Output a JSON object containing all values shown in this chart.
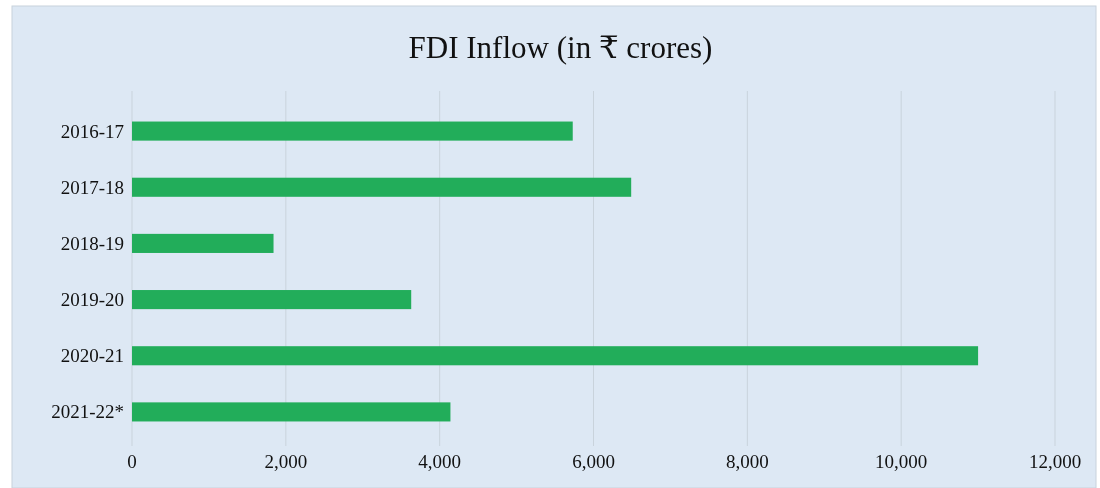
{
  "chart_data": {
    "type": "bar",
    "title": "FDI Inflow (in ₹ crores)",
    "orientation": "horizontal",
    "categories": [
      "2016-17",
      "2017-18",
      "2018-19",
      "2019-20",
      "2020-21",
      "2021-22*"
    ],
    "values": [
      5730,
      6490,
      1840,
      3630,
      11000,
      4140
    ],
    "color": "#22ad5a",
    "xlim": [
      0,
      12000
    ],
    "xticks": [
      {
        "value": 0,
        "label": "0"
      },
      {
        "value": 2000,
        "label": "2,000"
      },
      {
        "value": 4000,
        "label": "4,000"
      },
      {
        "value": 6000,
        "label": "6,000"
      },
      {
        "value": 8000,
        "label": "8,000"
      },
      {
        "value": 10000,
        "label": "10,000"
      },
      {
        "value": 12000,
        "label": "12,000"
      }
    ],
    "grid": "x"
  }
}
